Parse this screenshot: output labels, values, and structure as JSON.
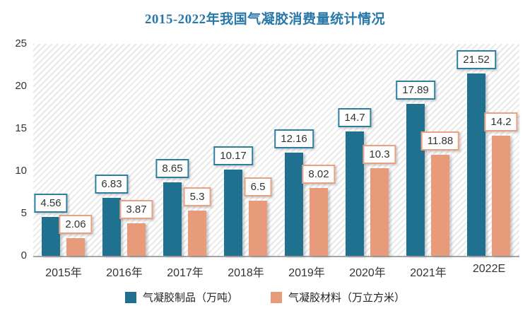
{
  "title": "2015-2022年我国气凝胶消费量统计情况",
  "colors": {
    "title": "#2878a8",
    "series1_bar": "#20708f",
    "series1_label_border": "#2d7fa0",
    "series2_bar": "#e89b7a",
    "series2_label_border": "#e9a183",
    "axis_line": "#a6a6a6",
    "text": "#333333",
    "hatch_line": "#e9e9e9"
  },
  "chart_data": {
    "type": "bar",
    "title": "2015-2022年我国气凝胶消费量统计情况",
    "categories": [
      "2015年",
      "2016年",
      "2017年",
      "2018年",
      "2019年",
      "2020年",
      "2021年",
      "2022E"
    ],
    "series": [
      {
        "name": "气凝胶制品（万吨）",
        "color": "#20708f",
        "label_border": "#2d7fa0",
        "values": [
          4.56,
          6.83,
          8.65,
          10.17,
          12.16,
          14.7,
          17.89,
          21.52
        ],
        "labels": [
          "4.56",
          "6.83",
          "8.65",
          "10.17",
          "12.16",
          "14.7",
          "17.89",
          "21.52"
        ]
      },
      {
        "name": "气凝胶材料（万立方米）",
        "color": "#e89b7a",
        "label_border": "#e9a183",
        "values": [
          2.06,
          3.87,
          5.3,
          6.5,
          8.02,
          10.3,
          11.88,
          14.2
        ],
        "labels": [
          "2.06",
          "3.87",
          "5.3",
          "6.5",
          "8.02",
          "10.3",
          "11.88",
          "14.2"
        ]
      }
    ],
    "xlabel": "",
    "ylabel": "",
    "ylim": [
      0,
      25
    ],
    "y_ticks": [
      0,
      5,
      10,
      15,
      20,
      25
    ],
    "grid": false,
    "plot_background": "diagonal-hatch",
    "data_labels": "boxed above bars",
    "legend_position": "bottom"
  }
}
